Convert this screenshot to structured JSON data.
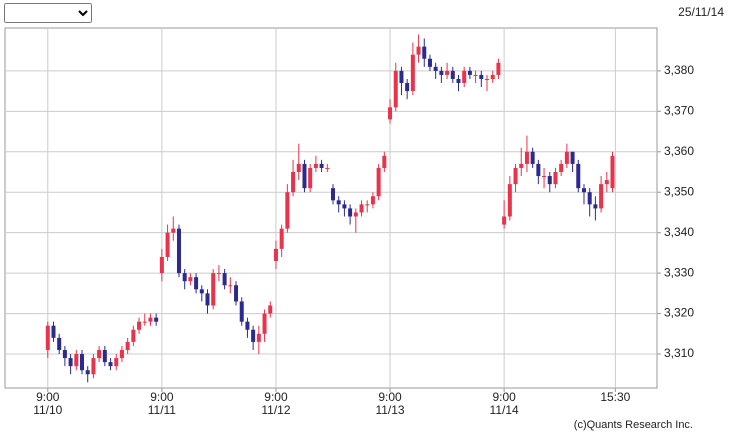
{
  "chart_data": {
    "type": "candlestick",
    "date": "25/11/14",
    "credit": "(c)Quants Research Inc.",
    "up_color": "#e8334a",
    "down_color": "#2b2b8f",
    "grid": true,
    "x": [
      0,
      1,
      2,
      3,
      4,
      5,
      6,
      7,
      8,
      9,
      10,
      11,
      12,
      13,
      14,
      15,
      16,
      17,
      18,
      19,
      20,
      21,
      22,
      23,
      24,
      25,
      26,
      27,
      28,
      29,
      30,
      31,
      32,
      33,
      34,
      35,
      36,
      37,
      38,
      39,
      40,
      41,
      42,
      43,
      44,
      45,
      46,
      47,
      48,
      49,
      50,
      51,
      52,
      53,
      54,
      55,
      56,
      57,
      58,
      59,
      60,
      61,
      62,
      63,
      64,
      65,
      66,
      67,
      68,
      69,
      70,
      71,
      72,
      73,
      74,
      75,
      76,
      77,
      78,
      79,
      80,
      81,
      82,
      83,
      84,
      85,
      86,
      87,
      88,
      89,
      90,
      91,
      92,
      93,
      94,
      95,
      96,
      97,
      98,
      99
    ],
    "open": [
      3311,
      3317,
      3314,
      3311,
      3309,
      3307,
      3310,
      3306,
      3305,
      3309,
      3311,
      3308,
      3307,
      3309,
      3311,
      3313,
      3316,
      3318,
      3318,
      3319,
      3330,
      3334,
      3340,
      3341,
      3330,
      3328,
      3329,
      3326,
      3325,
      3322,
      3330,
      3330,
      3327,
      3327,
      3323,
      3318,
      3316,
      3313,
      3315,
      3320,
      3333,
      3336,
      3341,
      3350,
      3355,
      3357,
      3351,
      3356,
      3357,
      3356,
      3351,
      3348,
      3347,
      3346,
      3344,
      3345,
      3347,
      3347,
      3349,
      3356,
      3368,
      3371,
      3380,
      3377,
      3375,
      3384,
      3386,
      3383,
      3381,
      3380,
      3379,
      3380,
      3378,
      3377,
      3380,
      3379,
      3379,
      3378,
      3378,
      3379,
      3342,
      3344,
      3352,
      3356,
      3357,
      3360,
      3357,
      3354,
      3354,
      3352,
      3355,
      3357,
      3360,
      3357,
      3351,
      3350,
      3347,
      3346,
      3352,
      3351
    ],
    "high": [
      3318,
      3318,
      3315,
      3312,
      3310,
      3311,
      3311,
      3307,
      3310,
      3312,
      3312,
      3309,
      3310,
      3312,
      3314,
      3317,
      3319,
      3320,
      3320,
      3320,
      3336,
      3342,
      3344,
      3342,
      3331,
      3330,
      3330,
      3327,
      3326,
      3331,
      3332,
      3331,
      3329,
      3328,
      3324,
      3319,
      3317,
      3317,
      3321,
      3323,
      3338,
      3342,
      3352,
      3358,
      3362,
      3358,
      3357,
      3359,
      3358,
      3357,
      3352,
      3349,
      3348,
      3347,
      3346,
      3348,
      3348,
      3350,
      3357,
      3360,
      3373,
      3382,
      3381,
      3378,
      3387,
      3389,
      3388,
      3384,
      3382,
      3381,
      3382,
      3381,
      3379,
      3381,
      3381,
      3380,
      3380,
      3379,
      3380,
      3383,
      3348,
      3354,
      3357,
      3361,
      3364,
      3361,
      3358,
      3356,
      3355,
      3356,
      3358,
      3362,
      3360,
      3358,
      3352,
      3351,
      3349,
      3354,
      3355,
      3360
    ],
    "low": [
      3309,
      3313,
      3310,
      3307,
      3305,
      3306,
      3305,
      3303,
      3304,
      3308,
      3307,
      3306,
      3306,
      3308,
      3310,
      3312,
      3315,
      3317,
      3317,
      3317,
      3328,
      3333,
      3338,
      3329,
      3326,
      3327,
      3325,
      3323,
      3320,
      3321,
      3328,
      3326,
      3325,
      3322,
      3317,
      3314,
      3311,
      3310,
      3313,
      3319,
      3331,
      3334,
      3340,
      3349,
      3353,
      3350,
      3350,
      3355,
      3355,
      3355,
      3347,
      3345,
      3344,
      3342,
      3340,
      3344,
      3345,
      3346,
      3348,
      3355,
      3367,
      3370,
      3374,
      3373,
      3374,
      3382,
      3381,
      3380,
      3378,
      3377,
      3378,
      3377,
      3375,
      3376,
      3378,
      3377,
      3376,
      3375,
      3377,
      3378,
      3341,
      3343,
      3350,
      3354,
      3355,
      3356,
      3352,
      3351,
      3350,
      3351,
      3354,
      3356,
      3355,
      3350,
      3347,
      3344,
      3343,
      3345,
      3350,
      3350
    ],
    "close": [
      3317,
      3314,
      3311,
      3309,
      3307,
      3310,
      3306,
      3305,
      3309,
      3311,
      3308,
      3307,
      3309,
      3311,
      3313,
      3316,
      3318,
      3318,
      3319,
      3318,
      3334,
      3340,
      3341,
      3330,
      3328,
      3329,
      3326,
      3325,
      3322,
      3330,
      3330,
      3327,
      3327,
      3323,
      3318,
      3316,
      3313,
      3315,
      3320,
      3322,
      3336,
      3341,
      3350,
      3355,
      3357,
      3351,
      3356,
      3357,
      3356,
      3356,
      3348,
      3347,
      3346,
      3344,
      3345,
      3347,
      3347,
      3349,
      3356,
      3359,
      3371,
      3380,
      3377,
      3375,
      3384,
      3386,
      3383,
      3381,
      3380,
      3379,
      3380,
      3378,
      3377,
      3380,
      3379,
      3379,
      3378,
      3378,
      3379,
      3382,
      3344,
      3352,
      3356,
      3357,
      3360,
      3357,
      3354,
      3354,
      3352,
      3355,
      3357,
      3360,
      3357,
      3351,
      3350,
      3347,
      3346,
      3352,
      3353,
      3359
    ],
    "xlim": [
      -7.5,
      106.8
    ],
    "xticks": [
      {
        "value": 0,
        "label": "9:00",
        "date": "11/10"
      },
      {
        "value": 20,
        "label": "9:00",
        "date": "11/11"
      },
      {
        "value": 40,
        "label": "9:00",
        "date": "11/12"
      },
      {
        "value": 60,
        "label": "9:00",
        "date": "11/13"
      },
      {
        "value": 80,
        "label": "9:00",
        "date": "11/14"
      },
      {
        "value": 99.5,
        "label": "15:30"
      }
    ],
    "ylim": [
      3301.6,
      3390.6
    ],
    "yticks": [
      {
        "value": 3310,
        "label": "3,310"
      },
      {
        "value": 3320,
        "label": "3,320"
      },
      {
        "value": 3330,
        "label": "3,330"
      },
      {
        "value": 3340,
        "label": "3,340"
      },
      {
        "value": 3350,
        "label": "3,350"
      },
      {
        "value": 3360,
        "label": "3,360"
      },
      {
        "value": 3370,
        "label": "3,370"
      },
      {
        "value": 3380,
        "label": "3,380"
      }
    ]
  }
}
